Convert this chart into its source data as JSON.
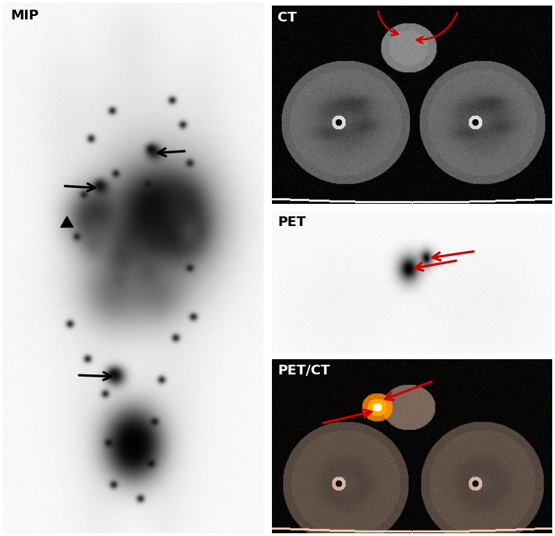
{
  "bg_color": "#ffffff",
  "mip_label": "MIP",
  "ct_label": "CT",
  "pet_label": "PET",
  "petct_label": "PET/CT",
  "arrow_color": "#cc0000",
  "label_fontsize": 13,
  "label_color_white": "#ffffff",
  "label_color_black": "#000000"
}
